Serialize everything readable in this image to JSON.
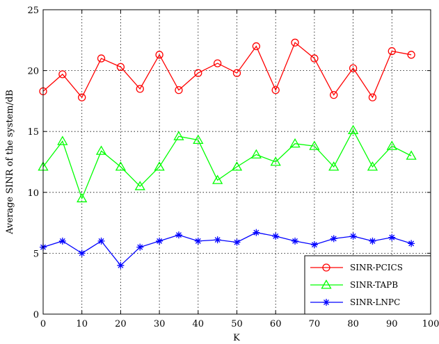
{
  "chart_data": {
    "type": "line",
    "xlabel": "K",
    "ylabel": "Average SINR of the system/dB",
    "xlim": [
      0,
      100
    ],
    "ylim": [
      0,
      25
    ],
    "xticks": [
      0,
      10,
      20,
      30,
      40,
      50,
      60,
      70,
      80,
      90,
      100
    ],
    "yticks": [
      0,
      5,
      10,
      15,
      20,
      25
    ],
    "grid": true,
    "legend_position": "bottom-right",
    "x": [
      0,
      5,
      10,
      15,
      20,
      25,
      30,
      35,
      40,
      45,
      50,
      55,
      60,
      65,
      70,
      75,
      80,
      85,
      90,
      95
    ],
    "series": [
      {
        "name": "SINR-PCICS",
        "color": "#ff0000",
        "marker": "circle",
        "values": [
          18.3,
          19.7,
          17.8,
          21.0,
          20.3,
          18.5,
          21.3,
          18.4,
          19.8,
          20.6,
          19.8,
          22.0,
          18.4,
          22.3,
          21.0,
          18.0,
          20.2,
          17.8,
          21.6,
          21.3
        ]
      },
      {
        "name": "SINR-TAPB",
        "color": "#00ff00",
        "marker": "triangle",
        "values": [
          12.1,
          14.2,
          9.5,
          13.4,
          12.1,
          10.5,
          12.1,
          14.6,
          14.3,
          11.0,
          12.1,
          13.1,
          12.5,
          14.0,
          13.8,
          12.1,
          15.1,
          12.1,
          13.8,
          13.0
        ]
      },
      {
        "name": "SINR-LNPC",
        "color": "#0000ff",
        "marker": "star",
        "values": [
          5.5,
          6.0,
          5.0,
          6.0,
          4.0,
          5.5,
          6.0,
          6.5,
          6.0,
          6.1,
          5.9,
          6.7,
          6.4,
          6.0,
          5.7,
          6.2,
          6.4,
          6.0,
          6.3,
          5.8
        ]
      }
    ]
  }
}
